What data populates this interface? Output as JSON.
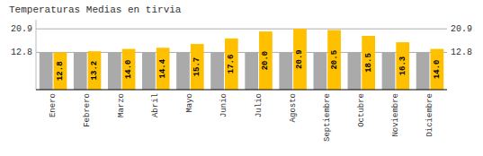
{
  "chart_data": {
    "type": "bar",
    "title": "Temperaturas Medias en tirvia",
    "categories": [
      "Enero",
      "Febrero",
      "Marzo",
      "Abril",
      "Mayo",
      "Junio",
      "Julio",
      "Agosto",
      "Septiembre",
      "Octubre",
      "Noviembre",
      "Diciembre"
    ],
    "series": [
      {
        "color": "#AAAAAA",
        "values": [
          12.8,
          12.8,
          12.8,
          12.8,
          12.8,
          12.8,
          12.8,
          12.8,
          12.8,
          12.8,
          12.8,
          12.8
        ]
      },
      {
        "color": "#FFC000",
        "values": [
          12.8,
          13.2,
          14.0,
          14.4,
          15.7,
          17.6,
          20.0,
          20.9,
          20.5,
          18.5,
          16.3,
          14.0
        ],
        "value_labels": [
          "12.8",
          "13.2",
          "14.0",
          "14.4",
          "15.7",
          "17.6",
          "20.0",
          "20.9",
          "20.5",
          "18.5",
          "16.3",
          "14.0"
        ],
        "data_labels": true
      }
    ],
    "ylim": [
      0,
      24.035
    ],
    "yticks": [
      20.9,
      12.8
    ],
    "grid": true,
    "tick_labels": "x"
  }
}
